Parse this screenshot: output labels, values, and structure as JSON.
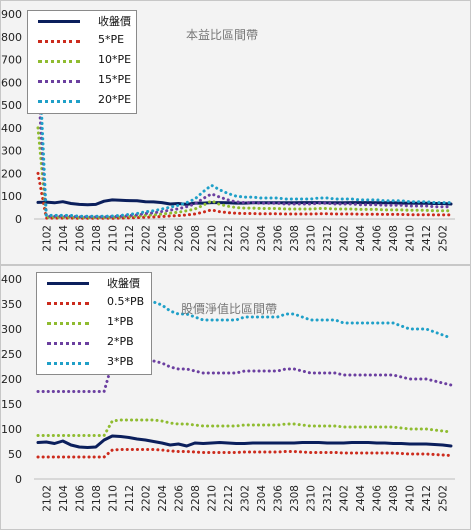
{
  "chart_data": [
    {
      "type": "line",
      "title": "本益比區間帶",
      "xlabel": "",
      "ylabel": "",
      "ylim": [
        0,
        900
      ],
      "yticks": [
        0,
        100,
        200,
        300,
        400,
        500,
        600,
        700,
        800,
        900
      ],
      "grid": false,
      "legend_position": "top-left",
      "x": [
        "2101",
        "2102",
        "2103",
        "2104",
        "2105",
        "2106",
        "2107",
        "2108",
        "2109",
        "2110",
        "2111",
        "2112",
        "2201",
        "2202",
        "2203",
        "2204",
        "2205",
        "2206",
        "2207",
        "2208",
        "2209",
        "2210",
        "2211",
        "2212",
        "2301",
        "2302",
        "2303",
        "2304",
        "2305",
        "2306",
        "2307",
        "2308",
        "2309",
        "2310",
        "2311",
        "2312",
        "2401",
        "2402",
        "2403",
        "2404",
        "2405",
        "2406",
        "2407",
        "2408",
        "2409",
        "2410",
        "2411",
        "2412",
        "2501",
        "2502",
        "2503"
      ],
      "xtick_labels": [
        "2102",
        "2104",
        "2106",
        "2108",
        "2110",
        "2112",
        "2202",
        "2204",
        "2206",
        "2208",
        "2210",
        "2212",
        "2302",
        "2304",
        "2306",
        "2308",
        "2310",
        "2312",
        "2402",
        "2404",
        "2406",
        "2408",
        "2410",
        "2412",
        "2502"
      ],
      "series": [
        {
          "name": "收盤價",
          "color": "#0b1f5c",
          "style": "solid",
          "values": [
            73,
            74,
            71,
            76,
            68,
            64,
            63,
            64,
            78,
            84,
            82,
            81,
            80,
            76,
            75,
            72,
            66,
            68,
            64,
            70,
            70,
            72,
            72,
            71,
            70,
            70,
            71,
            71,
            71,
            71,
            71,
            71,
            72,
            72,
            72,
            71,
            71,
            71,
            72,
            72,
            72,
            71,
            71,
            71,
            70,
            70,
            69,
            69,
            68,
            68,
            66
          ]
        },
        {
          "name": "5*PE",
          "color": "#cc2b1d",
          "style": "dotted",
          "values": [
            200,
            4,
            4,
            4,
            4,
            3,
            3,
            3,
            3,
            3,
            4,
            5,
            6,
            8,
            9,
            11,
            13,
            15,
            18,
            22,
            30,
            40,
            32,
            28,
            25,
            24,
            24,
            23,
            23,
            23,
            22,
            22,
            22,
            22,
            23,
            23,
            22,
            22,
            22,
            21,
            21,
            21,
            20,
            20,
            20,
            19,
            19,
            19,
            18,
            18,
            18
          ]
        },
        {
          "name": "10*PE",
          "color": "#8fbc30",
          "style": "dotted",
          "values": [
            400,
            8,
            8,
            8,
            8,
            6,
            6,
            6,
            6,
            7,
            8,
            10,
            12,
            16,
            18,
            22,
            26,
            30,
            36,
            44,
            60,
            80,
            64,
            56,
            50,
            48,
            48,
            46,
            46,
            46,
            44,
            44,
            44,
            44,
            46,
            46,
            44,
            44,
            44,
            42,
            42,
            42,
            40,
            40,
            40,
            38,
            38,
            38,
            36,
            36,
            36
          ]
        },
        {
          "name": "15*PE",
          "color": "#6b3fa0",
          "style": "dotted",
          "values": [
            600,
            12,
            12,
            12,
            12,
            9,
            9,
            9,
            9,
            10,
            12,
            15,
            18,
            24,
            27,
            33,
            39,
            45,
            54,
            66,
            90,
            110,
            96,
            84,
            75,
            72,
            72,
            69,
            69,
            69,
            66,
            66,
            66,
            66,
            69,
            69,
            66,
            66,
            66,
            63,
            63,
            63,
            60,
            60,
            60,
            57,
            57,
            57,
            54,
            54,
            54
          ]
        },
        {
          "name": "20*PE",
          "color": "#1fa0c8",
          "style": "dotted",
          "values": [
            800,
            16,
            16,
            16,
            16,
            12,
            12,
            12,
            12,
            13,
            16,
            20,
            24,
            32,
            36,
            44,
            52,
            60,
            72,
            88,
            120,
            148,
            128,
            112,
            100,
            96,
            96,
            92,
            92,
            92,
            88,
            88,
            88,
            88,
            92,
            92,
            88,
            88,
            88,
            84,
            84,
            84,
            80,
            80,
            80,
            76,
            76,
            76,
            72,
            72,
            72
          ]
        }
      ]
    },
    {
      "type": "line",
      "title": "股價淨值比區間帶",
      "xlabel": "",
      "ylabel": "",
      "ylim": [
        0,
        400
      ],
      "yticks": [
        0,
        50,
        100,
        150,
        200,
        250,
        300,
        350,
        400
      ],
      "grid": false,
      "legend_position": "top-left",
      "x": [
        "2101",
        "2102",
        "2103",
        "2104",
        "2105",
        "2106",
        "2107",
        "2108",
        "2109",
        "2110",
        "2111",
        "2112",
        "2201",
        "2202",
        "2203",
        "2204",
        "2205",
        "2206",
        "2207",
        "2208",
        "2209",
        "2210",
        "2211",
        "2212",
        "2301",
        "2302",
        "2303",
        "2304",
        "2305",
        "2306",
        "2307",
        "2308",
        "2309",
        "2310",
        "2311",
        "2312",
        "2401",
        "2402",
        "2403",
        "2404",
        "2405",
        "2406",
        "2407",
        "2408",
        "2409",
        "2410",
        "2411",
        "2412",
        "2501",
        "2502",
        "2503"
      ],
      "xtick_labels": [
        "2102",
        "2104",
        "2106",
        "2108",
        "2110",
        "2112",
        "2202",
        "2204",
        "2206",
        "2208",
        "2210",
        "2212",
        "2302",
        "2304",
        "2306",
        "2308",
        "2310",
        "2312",
        "2402",
        "2404",
        "2406",
        "2408",
        "2410",
        "2412",
        "2502"
      ],
      "series": [
        {
          "name": "收盤價",
          "color": "#0b1f5c",
          "style": "solid",
          "values": [
            73,
            74,
            71,
            76,
            68,
            64,
            63,
            64,
            78,
            86,
            85,
            83,
            80,
            78,
            75,
            72,
            68,
            70,
            66,
            72,
            71,
            72,
            73,
            72,
            71,
            71,
            72,
            72,
            72,
            72,
            72,
            72,
            73,
            73,
            73,
            72,
            72,
            72,
            73,
            73,
            73,
            72,
            72,
            71,
            71,
            70,
            70,
            70,
            69,
            68,
            66
          ]
        },
        {
          "name": "0.5*PB",
          "color": "#cc2b1d",
          "style": "dotted",
          "values": [
            44,
            44,
            44,
            44,
            44,
            44,
            44,
            44,
            44,
            58,
            59,
            59,
            59,
            59,
            59,
            58,
            56,
            55,
            55,
            54,
            53,
            53,
            53,
            53,
            53,
            54,
            54,
            54,
            54,
            54,
            55,
            55,
            54,
            53,
            53,
            53,
            53,
            52,
            52,
            52,
            52,
            52,
            52,
            52,
            51,
            50,
            50,
            50,
            49,
            48,
            47
          ]
        },
        {
          "name": "1*PB",
          "color": "#8fbc30",
          "style": "dotted",
          "values": [
            87,
            87,
            87,
            87,
            87,
            87,
            87,
            87,
            87,
            116,
            118,
            118,
            118,
            118,
            118,
            116,
            112,
            110,
            110,
            108,
            106,
            106,
            106,
            106,
            106,
            108,
            108,
            108,
            108,
            108,
            110,
            110,
            108,
            106,
            106,
            106,
            106,
            104,
            104,
            104,
            104,
            104,
            104,
            104,
            102,
            100,
            100,
            100,
            98,
            96,
            94
          ]
        },
        {
          "name": "2*PB",
          "color": "#6b3fa0",
          "style": "dotted",
          "values": [
            175,
            175,
            175,
            175,
            175,
            175,
            175,
            175,
            175,
            232,
            236,
            236,
            236,
            236,
            236,
            232,
            224,
            220,
            220,
            216,
            212,
            212,
            212,
            212,
            212,
            216,
            216,
            216,
            216,
            216,
            220,
            220,
            216,
            212,
            212,
            212,
            212,
            208,
            208,
            208,
            208,
            208,
            208,
            208,
            204,
            200,
            200,
            200,
            196,
            192,
            188
          ]
        },
        {
          "name": "3*PB",
          "color": "#1fa0c8",
          "style": "dotted",
          "values": [
            262,
            262,
            262,
            262,
            262,
            262,
            262,
            262,
            262,
            348,
            354,
            354,
            354,
            354,
            354,
            348,
            336,
            330,
            330,
            324,
            318,
            318,
            318,
            318,
            318,
            324,
            324,
            324,
            324,
            324,
            330,
            330,
            324,
            318,
            318,
            318,
            318,
            312,
            312,
            312,
            312,
            312,
            312,
            312,
            306,
            300,
            300,
            300,
            294,
            288,
            282
          ]
        }
      ]
    }
  ]
}
